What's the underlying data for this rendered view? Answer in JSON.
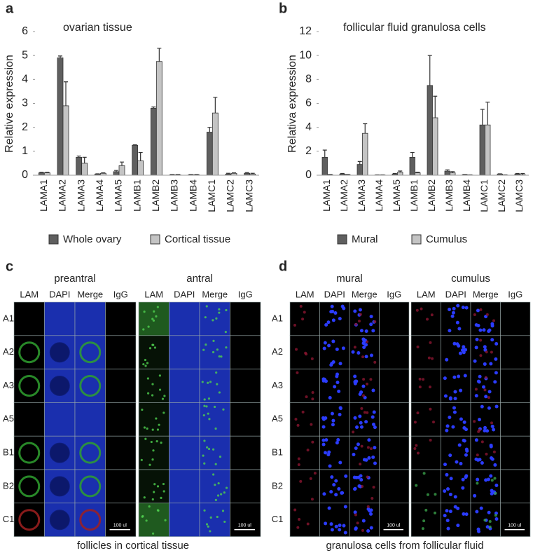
{
  "chart_data": [
    {
      "type": "bar",
      "panel": "a",
      "title": "ovarian tissue",
      "y_label": "Relative expression",
      "categories": [
        "LAMA1",
        "LAMA2",
        "LAMA3",
        "LAMA4",
        "LAMA5",
        "LAMB1",
        "LAMB2",
        "LAMB3",
        "LAMB4",
        "LAMC1",
        "LAMC2",
        "LAMC3"
      ],
      "series": [
        {
          "name": "Whole ovary",
          "color": "#5f5f5f",
          "values": [
            0.1,
            4.9,
            0.75,
            0.05,
            0.15,
            1.25,
            2.8,
            0.02,
            0.02,
            1.8,
            0.05,
            0.08
          ],
          "errors": [
            0.02,
            0.08,
            0.05,
            0.01,
            0.05,
            0.02,
            0.05,
            0.01,
            0.01,
            0.2,
            0.03,
            0.03
          ]
        },
        {
          "name": "Cortical tissue",
          "color": "#c4c4c4",
          "values": [
            0.1,
            2.9,
            0.5,
            0.08,
            0.4,
            0.6,
            4.75,
            0.02,
            0.02,
            2.6,
            0.08,
            0.05
          ],
          "errors": [
            0.02,
            1.0,
            0.25,
            0.02,
            0.15,
            0.35,
            0.55,
            0.01,
            0.01,
            0.65,
            0.02,
            0.03
          ]
        }
      ],
      "ylim": [
        0,
        6
      ],
      "yticks": [
        0,
        1,
        2,
        3,
        4,
        5,
        6
      ],
      "grid": false,
      "legend": "bottom"
    },
    {
      "type": "bar",
      "panel": "b",
      "title": "follicular fluid granulosa cells",
      "y_label": "Relativa expression",
      "categories": [
        "LAMA1",
        "LAMA2",
        "LAMA3",
        "LAMA4",
        "LAMA5",
        "LAMB1",
        "LAMB2",
        "LAMB3",
        "LAMB4",
        "LAMC1",
        "LAMC2",
        "LAMC3"
      ],
      "series": [
        {
          "name": "Mural",
          "color": "#5f5f5f",
          "values": [
            1.5,
            0.1,
            0.9,
            0.02,
            0.1,
            1.5,
            7.5,
            0.35,
            0.05,
            4.2,
            0.1,
            0.1
          ],
          "errors": [
            0.6,
            0.05,
            0.25,
            0.01,
            0.05,
            0.4,
            2.5,
            0.1,
            0.01,
            1.3,
            0.02,
            0.05
          ]
        },
        {
          "name": "Cumulus",
          "color": "#c4c4c4",
          "values": [
            0.05,
            0.05,
            3.5,
            0.02,
            0.25,
            0.2,
            4.8,
            0.2,
            0.02,
            4.2,
            0.02,
            0.05
          ],
          "errors": [
            0.01,
            0.01,
            0.8,
            0.01,
            0.1,
            0.05,
            1.8,
            0.1,
            0.01,
            1.9,
            0.01,
            0.1
          ]
        }
      ],
      "ylim": [
        0,
        12
      ],
      "yticks": [
        0,
        2,
        4,
        6,
        8,
        10,
        12
      ],
      "grid": false,
      "legend": "bottom"
    }
  ],
  "image_panels": [
    {
      "label": "c",
      "caption": "follicles in cortical tissue",
      "scale_bar": "100 ul",
      "rows": [
        "A1",
        "A2",
        "A3",
        "A5",
        "B1",
        "B2",
        "C1"
      ],
      "groups": [
        {
          "title": "preantral",
          "columns": [
            "LAM",
            "DAPI",
            "Merge",
            "IgG"
          ]
        },
        {
          "title": "antral",
          "columns": [
            "LAM",
            "DAPI",
            "Merge",
            "IgG"
          ]
        }
      ]
    },
    {
      "label": "d",
      "caption": "granulosa cells from follicular fluid",
      "scale_bar": "100 ul",
      "rows": [
        "A1",
        "A2",
        "A3",
        "A5",
        "B1",
        "B2",
        "C1"
      ],
      "groups": [
        {
          "title": "mural",
          "columns": [
            "LAM",
            "DAPI",
            "Merge",
            "IgG"
          ]
        },
        {
          "title": "cumulus",
          "columns": [
            "LAM",
            "DAPI",
            "Merge",
            "IgG"
          ]
        }
      ]
    }
  ]
}
